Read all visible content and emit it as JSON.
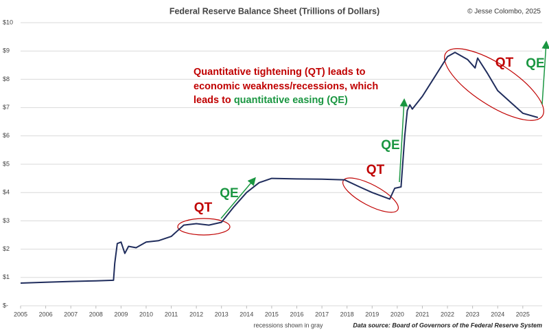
{
  "chart_data": {
    "type": "line",
    "title": "Federal Reserve Balance Sheet (Trillions of Dollars)",
    "credit": "© Jesse Colombo, 2025",
    "x_label": "recessions shown in gray",
    "source": "Data source: Board of Governors of the Federal Reserve System",
    "x": [
      2005.0,
      2006.0,
      2007.0,
      2008.0,
      2008.7,
      2008.75,
      2008.85,
      2009.0,
      2009.15,
      2009.3,
      2009.6,
      2010.0,
      2010.5,
      2011.0,
      2011.5,
      2012.0,
      2012.5,
      2013.0,
      2013.5,
      2014.0,
      2014.5,
      2015.0,
      2016.0,
      2017.0,
      2017.9,
      2018.5,
      2019.0,
      2019.7,
      2019.9,
      2020.15,
      2020.3,
      2020.4,
      2020.5,
      2020.6,
      2021.0,
      2021.5,
      2022.0,
      2022.3,
      2022.8,
      2023.1,
      2023.2,
      2023.6,
      2024.0,
      2024.5,
      2025.0,
      2025.6
    ],
    "values": [
      0.8,
      0.83,
      0.86,
      0.88,
      0.9,
      1.5,
      2.2,
      2.25,
      1.85,
      2.1,
      2.05,
      2.25,
      2.3,
      2.45,
      2.85,
      2.9,
      2.85,
      2.95,
      3.5,
      4.0,
      4.35,
      4.5,
      4.48,
      4.47,
      4.45,
      4.2,
      4.0,
      3.77,
      4.15,
      4.2,
      6.0,
      6.9,
      7.1,
      6.95,
      7.4,
      8.1,
      8.8,
      8.95,
      8.7,
      8.4,
      8.75,
      8.2,
      7.6,
      7.2,
      6.8,
      6.65
    ],
    "color": "#1f2c5c",
    "xlim": [
      2005,
      2025.77
    ],
    "xticks": [
      2005,
      2006,
      2007,
      2008,
      2009,
      2010,
      2011,
      2012,
      2013,
      2014,
      2015,
      2016,
      2017,
      2018,
      2019,
      2020,
      2021,
      2022,
      2023,
      2024,
      2025
    ],
    "ylim": [
      0,
      10
    ],
    "yticks": [
      {
        "value": 0,
        "label": "$-"
      },
      {
        "value": 1,
        "label": "$1"
      },
      {
        "value": 2,
        "label": "$2"
      },
      {
        "value": 3,
        "label": "$3"
      },
      {
        "value": 4,
        "label": "$4"
      },
      {
        "value": 5,
        "label": "$5"
      },
      {
        "value": 6,
        "label": "$6"
      },
      {
        "value": 7,
        "label": "$7"
      },
      {
        "value": 8,
        "label": "$8"
      },
      {
        "value": 9,
        "label": "$9"
      },
      {
        "value": 10,
        "label": "$10"
      }
    ],
    "grid": true,
    "annotations": {
      "qt": "QT",
      "qe": "QE",
      "text_lines": [
        "Quantitative tightening (QT) leads to",
        "economic weakness/recessions, which",
        "leads to "
      ],
      "text_green": "quantitative easing (QE)"
    },
    "qt_color": "#c00000",
    "qe_color": "#1a9641"
  }
}
